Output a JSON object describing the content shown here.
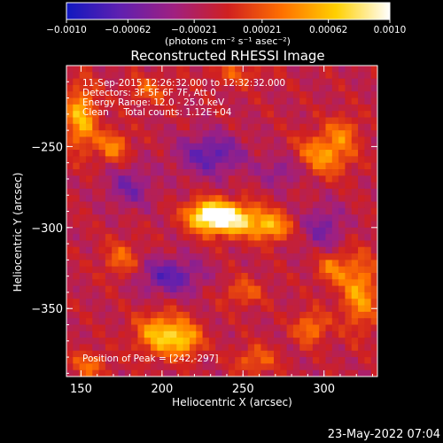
{
  "chart_data": {
    "type": "heatmap",
    "title": "Reconstructed RHESSI Image",
    "xlabel": "Heliocentric X (arcsec)",
    "ylabel": "Heliocentric Y (arcsec)",
    "xlim": [
      141,
      333
    ],
    "ylim": [
      -392,
      -200
    ],
    "x_ticks": [
      150,
      200,
      250,
      300
    ],
    "x_tick_labels": [
      "150",
      "200",
      "250",
      "300"
    ],
    "y_ticks": [
      -250,
      -300,
      -350
    ],
    "y_tick_labels": [
      "−250",
      "−300",
      "−350"
    ],
    "colorbar": {
      "min": -0.001,
      "max": 0.001,
      "tick_values": [
        -0.001,
        -0.00062,
        -0.00021,
        0.00021,
        0.00062,
        0.001
      ],
      "tick_labels": [
        "−0.0010",
        "−0.00062",
        "−0.00021",
        "0.00021",
        "0.00062",
        "0.0010"
      ],
      "label": "(photons cm⁻² s⁻¹ asec⁻²)",
      "colors": [
        "#1018c0",
        "#6020b0",
        "#a02080",
        "#d02020",
        "#ff7000",
        "#ffd000",
        "#ffffff"
      ]
    },
    "annotations": {
      "time": "11-Sep-2015 12:26:32.000 to 12:32:32.000",
      "detectors": "Detectors: 3F 5F 6F 7F, Att 0",
      "energy": "Energy Range: 12.0 - 25.0 keV",
      "clean": "Clean     Total counts: 1.12E+04",
      "peak": "Position of Peak = [242,-297]"
    },
    "peak_position": [
      242,
      -297
    ],
    "sources": [
      {
        "x": 242,
        "y": -295,
        "amp": 1.0,
        "sx": 14,
        "sy": 7
      },
      {
        "x": 228,
        "y": -292,
        "amp": 0.75,
        "sx": 9,
        "sy": 6
      },
      {
        "x": 268,
        "y": -300,
        "amp": 0.6,
        "sx": 8,
        "sy": 6
      },
      {
        "x": 200,
        "y": -366,
        "amp": 0.75,
        "sx": 11,
        "sy": 9
      },
      {
        "x": 215,
        "y": -370,
        "amp": 0.5,
        "sx": 7,
        "sy": 7
      },
      {
        "x": 150,
        "y": -232,
        "amp": 0.7,
        "sx": 7,
        "sy": 14
      },
      {
        "x": 170,
        "y": -250,
        "amp": 0.5,
        "sx": 7,
        "sy": 7
      },
      {
        "x": 300,
        "y": -255,
        "amp": 0.6,
        "sx": 12,
        "sy": 9
      },
      {
        "x": 312,
        "y": -240,
        "amp": 0.35,
        "sx": 7,
        "sy": 7
      },
      {
        "x": 322,
        "y": -340,
        "amp": 0.6,
        "sx": 8,
        "sy": 16
      },
      {
        "x": 305,
        "y": -325,
        "amp": 0.45,
        "sx": 7,
        "sy": 7
      },
      {
        "x": 292,
        "y": -362,
        "amp": 0.5,
        "sx": 7,
        "sy": 7
      },
      {
        "x": 175,
        "y": -320,
        "amp": 0.4,
        "sx": 8,
        "sy": 8
      },
      {
        "x": 250,
        "y": -340,
        "amp": 0.35,
        "sx": 9,
        "sy": 6
      },
      {
        "x": 258,
        "y": -382,
        "amp": 0.4,
        "sx": 9,
        "sy": 6
      },
      {
        "x": 155,
        "y": -385,
        "amp": 0.4,
        "sx": 8,
        "sy": 6
      },
      {
        "x": 192,
        "y": -215,
        "amp": 0.35,
        "sx": 10,
        "sy": 6
      },
      {
        "x": 245,
        "y": -205,
        "amp": 0.3,
        "sx": 12,
        "sy": 5
      }
    ],
    "negative_regions": [
      {
        "x": 205,
        "y": -330,
        "amp": -0.55,
        "sx": 14,
        "sy": 8
      },
      {
        "x": 230,
        "y": -255,
        "amp": -0.55,
        "sx": 14,
        "sy": 9
      },
      {
        "x": 180,
        "y": -275,
        "amp": -0.4,
        "sx": 10,
        "sy": 9
      },
      {
        "x": 275,
        "y": -265,
        "amp": -0.35,
        "sx": 10,
        "sy": 7
      },
      {
        "x": 300,
        "y": -300,
        "amp": -0.4,
        "sx": 9,
        "sy": 10
      }
    ]
  },
  "footer": {
    "date": "23-May-2022 07:04"
  }
}
